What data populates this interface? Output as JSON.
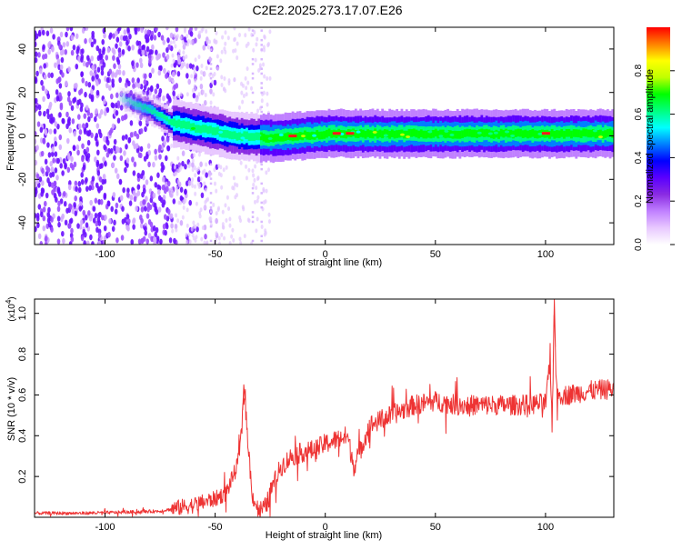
{
  "figure": {
    "title": "C2E2.2025.273.17.07.E26"
  },
  "colorbar": {
    "label": "Normalized spectral amplitude",
    "ticks": [
      "0.0",
      "0.2",
      "0.4",
      "0.6",
      "0.8"
    ],
    "range": [
      0,
      1
    ],
    "colormap": [
      "#ffffff",
      "#e8c8ff",
      "#c080ff",
      "#8a2be2",
      "#5a00ff",
      "#0000ff",
      "#0080ff",
      "#00ffff",
      "#00ff80",
      "#00ff00",
      "#c0ff00",
      "#ffff00",
      "#ff8000",
      "#ff0000"
    ]
  },
  "chart_data": [
    {
      "type": "heatmap",
      "xlabel": "Height of straight line (km)",
      "ylabel": "Frequency (Hz)",
      "xlim": [
        -132,
        131
      ],
      "ylim": [
        -50,
        50
      ],
      "x_ticks": [
        "-100",
        "-50",
        "0",
        "50",
        "100"
      ],
      "y_ticks": [
        "-40",
        "-20",
        "0",
        "20",
        "40"
      ],
      "ridge": [
        {
          "x": -100,
          "y": 20
        },
        {
          "x": -80,
          "y": 12
        },
        {
          "x": -70,
          "y": 6
        },
        {
          "x": -50,
          "y": 2
        },
        {
          "x": -40,
          "y": 0
        },
        {
          "x": -25,
          "y": -1
        },
        {
          "x": 0,
          "y": 1
        },
        {
          "x": 50,
          "y": 1
        },
        {
          "x": 100,
          "y": 1
        },
        {
          "x": 131,
          "y": 1
        }
      ],
      "hotspots_x": [
        -15,
        5,
        11,
        100
      ]
    },
    {
      "type": "line",
      "xlabel": "Height of straight line (km)",
      "ylabel": "SNR (10 * v/v)",
      "multiplier": "(x10",
      "multiplier_exp": "4",
      "multiplier_close": ")",
      "xlim": [
        -132,
        131
      ],
      "ylim": [
        0,
        1.07
      ],
      "x_ticks": [
        "-100",
        "-50",
        "0",
        "50",
        "100"
      ],
      "y_ticks": [
        "0.2",
        "0.4",
        "0.6",
        "0.8",
        "1.0"
      ],
      "series": [
        {
          "color": "#ee3333",
          "points": [
            [
              -132,
              0.02
            ],
            [
              -110,
              0.02
            ],
            [
              -90,
              0.025
            ],
            [
              -75,
              0.03
            ],
            [
              -70,
              0.04
            ],
            [
              -60,
              0.06
            ],
            [
              -50,
              0.09
            ],
            [
              -45,
              0.12
            ],
            [
              -40,
              0.25
            ],
            [
              -38,
              0.4
            ],
            [
              -37,
              0.65
            ],
            [
              -35,
              0.35
            ],
            [
              -33,
              0.1
            ],
            [
              -30,
              0.03
            ],
            [
              -27,
              0.05
            ],
            [
              -24,
              0.15
            ],
            [
              -20,
              0.25
            ],
            [
              -15,
              0.3
            ],
            [
              -10,
              0.32
            ],
            [
              -5,
              0.33
            ],
            [
              0,
              0.36
            ],
            [
              5,
              0.38
            ],
            [
              10,
              0.4
            ],
            [
              13,
              0.25
            ],
            [
              15,
              0.3
            ],
            [
              20,
              0.45
            ],
            [
              30,
              0.5
            ],
            [
              40,
              0.55
            ],
            [
              50,
              0.57
            ],
            [
              60,
              0.55
            ],
            [
              70,
              0.55
            ],
            [
              80,
              0.55
            ],
            [
              90,
              0.55
            ],
            [
              100,
              0.56
            ],
            [
              102,
              0.75
            ],
            [
              103,
              0.45
            ],
            [
              104,
              1.07
            ],
            [
              105,
              0.6
            ],
            [
              110,
              0.6
            ],
            [
              120,
              0.62
            ],
            [
              131,
              0.63
            ]
          ]
        }
      ]
    }
  ]
}
